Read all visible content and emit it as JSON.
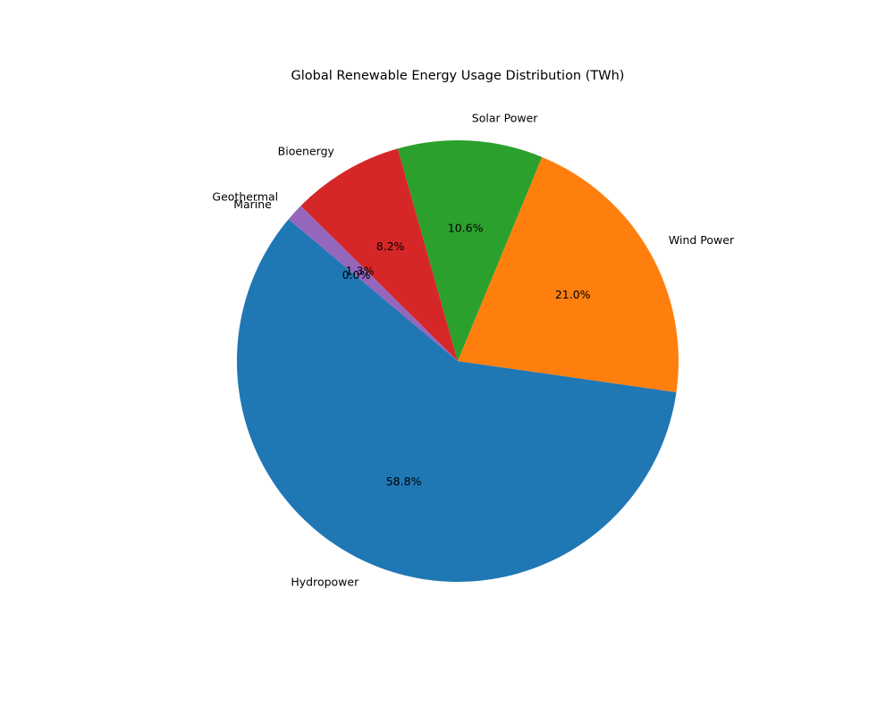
{
  "chart_data": {
    "type": "pie",
    "title": "Global Renewable Energy Usage Distribution (TWh)",
    "start_angle_deg": 140,
    "direction": "counterclockwise",
    "slices": [
      {
        "label": "Hydropower",
        "percent": 58.8,
        "pct_label": "58.8%",
        "color": "#1f77b4"
      },
      {
        "label": "Wind Power",
        "percent": 21.0,
        "pct_label": "21.0%",
        "color": "#ff7f0e"
      },
      {
        "label": "Solar Power",
        "percent": 10.6,
        "pct_label": "10.6%",
        "color": "#2ca02c"
      },
      {
        "label": "Bioenergy",
        "percent": 8.2,
        "pct_label": "8.2%",
        "color": "#d62728"
      },
      {
        "label": "Geothermal",
        "percent": 1.3,
        "pct_label": "1.3%",
        "color": "#9467bd"
      },
      {
        "label": "Marine",
        "percent": 0.0,
        "pct_label": "0.0%",
        "color": "#8c564b"
      }
    ]
  }
}
